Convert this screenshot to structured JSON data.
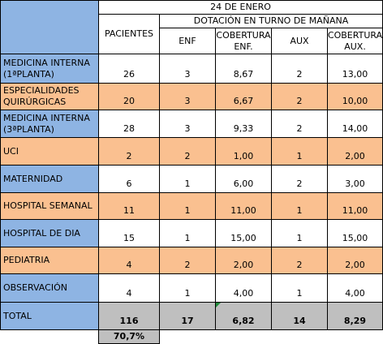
{
  "header": {
    "date": "24 DE ENERO",
    "dotacion": "DOTACIÓN EN TURNO DE MAÑANA",
    "pacientes": "PACIENTES",
    "enf": "ENF",
    "cobertura_enf": "COBERTURA\nENF.",
    "aux": "AUX",
    "cobertura_aux": "COBERTURA\nAUX."
  },
  "rows": [
    {
      "label": "MEDICINA INTERNA\n(1ªPLANTA)",
      "pacientes": "26",
      "enf": "3",
      "cob_enf": "8,67",
      "aux": "2",
      "cob_aux": "13,00"
    },
    {
      "label": "ESPECIALIDADES\nQUIRÚRGICAS",
      "pacientes": "20",
      "enf": "3",
      "cob_enf": "6,67",
      "aux": "2",
      "cob_aux": "10,00"
    },
    {
      "label": "MEDICINA INTERNA\n(3ªPLANTA)",
      "pacientes": "28",
      "enf": "3",
      "cob_enf": "9,33",
      "aux": "2",
      "cob_aux": "14,00"
    },
    {
      "label": "UCI",
      "pacientes": "2",
      "enf": "2",
      "cob_enf": "1,00",
      "aux": "1",
      "cob_aux": "2,00"
    },
    {
      "label": "MATERNIDAD",
      "pacientes": "6",
      "enf": "1",
      "cob_enf": "6,00",
      "aux": "2",
      "cob_aux": "3,00"
    },
    {
      "label": "HOSPITAL SEMANAL",
      "pacientes": "11",
      "enf": "1",
      "cob_enf": "11,00",
      "aux": "1",
      "cob_aux": "11,00"
    },
    {
      "label": "HOSPITAL DE DIA",
      "pacientes": "15",
      "enf": "1",
      "cob_enf": "15,00",
      "aux": "1",
      "cob_aux": "15,00"
    },
    {
      "label": "PEDIATRIA",
      "pacientes": "4",
      "enf": "2",
      "cob_enf": "2,00",
      "aux": "2",
      "cob_aux": "2,00"
    },
    {
      "label": "OBSERVACIÓN",
      "pacientes": "4",
      "enf": "1",
      "cob_enf": "4,00",
      "aux": "1",
      "cob_aux": "4,00"
    }
  ],
  "total": {
    "label": "TOTAL",
    "pacientes": "116",
    "enf": "17",
    "cob_enf": "6,82",
    "aux": "14",
    "cob_aux": "8,29"
  },
  "occupancy": "70,7%",
  "colors": {
    "label_col": "#8EB4E3",
    "alt_row": "#FAC090",
    "total_row": "#BFBFBF"
  }
}
